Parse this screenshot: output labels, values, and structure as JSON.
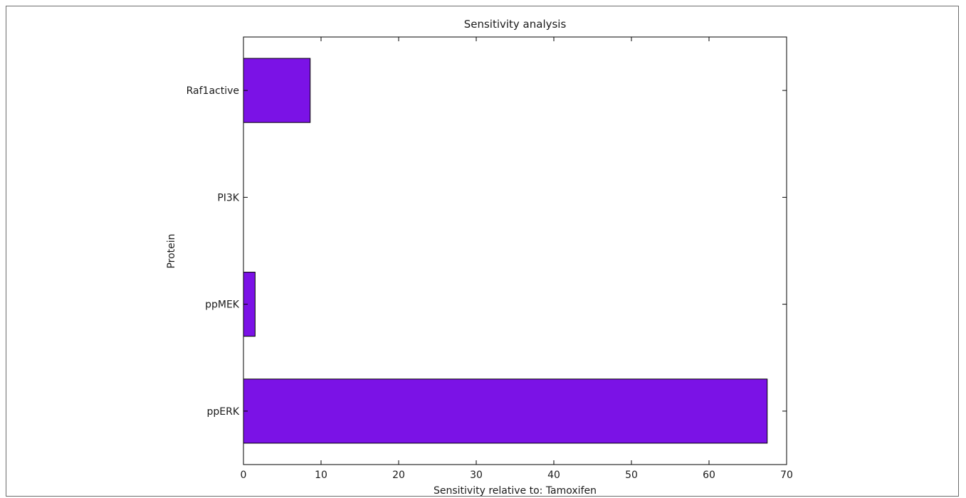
{
  "chart_data": {
    "type": "bar",
    "orientation": "horizontal",
    "title": "Sensitivity analysis",
    "xlabel": "Sensitivity relative to: Tamoxifen",
    "ylabel": "Protein",
    "categories": [
      "Raf1active",
      "PI3K",
      "ppMEK",
      "ppERK"
    ],
    "values": [
      8.6,
      0,
      1.5,
      67.5
    ],
    "xlim": [
      0,
      70
    ],
    "xticks": [
      0,
      10,
      20,
      30,
      40,
      50,
      60,
      70
    ],
    "grid": false,
    "bar_color": "#7b12e6",
    "bar_edge_color": "#000000"
  }
}
